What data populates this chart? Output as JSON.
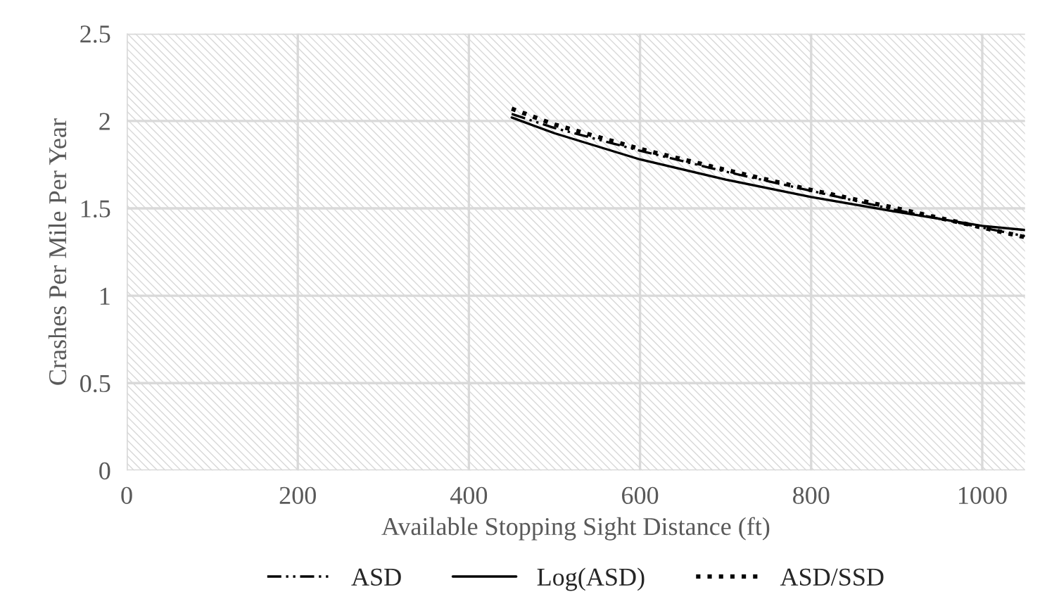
{
  "chart_data": {
    "type": "line",
    "xlabel": "Available Stopping Sight Distance (ft)",
    "ylabel": "Crashes Per Mile Per Year",
    "x": [
      450,
      500,
      600,
      700,
      800,
      900,
      1000,
      1050
    ],
    "series": [
      {
        "name": "ASD",
        "color": "#000000",
        "line_style": "dashdot",
        "values": [
          2.04,
          1.96,
          1.83,
          1.71,
          1.6,
          1.49,
          1.39,
          1.34
        ]
      },
      {
        "name": "Log(ASD)",
        "color": "#000000",
        "line_style": "solid",
        "values": [
          2.02,
          1.93,
          1.78,
          1.665,
          1.565,
          1.48,
          1.4,
          1.376
        ]
      },
      {
        "name": "ASD/SSD",
        "color": "#000000",
        "line_style": "dotted",
        "values": [
          2.07,
          1.98,
          1.84,
          1.72,
          1.605,
          1.5,
          1.39,
          1.335
        ]
      }
    ],
    "xlim": [
      0,
      1050
    ],
    "xticks": [
      0,
      200,
      400,
      600,
      800,
      1000
    ],
    "ylim": [
      0,
      2.5
    ],
    "yticks": [
      0,
      0.5,
      1,
      1.5,
      2,
      2.5
    ],
    "grid": true,
    "legend": "bottom",
    "marker": "none"
  }
}
